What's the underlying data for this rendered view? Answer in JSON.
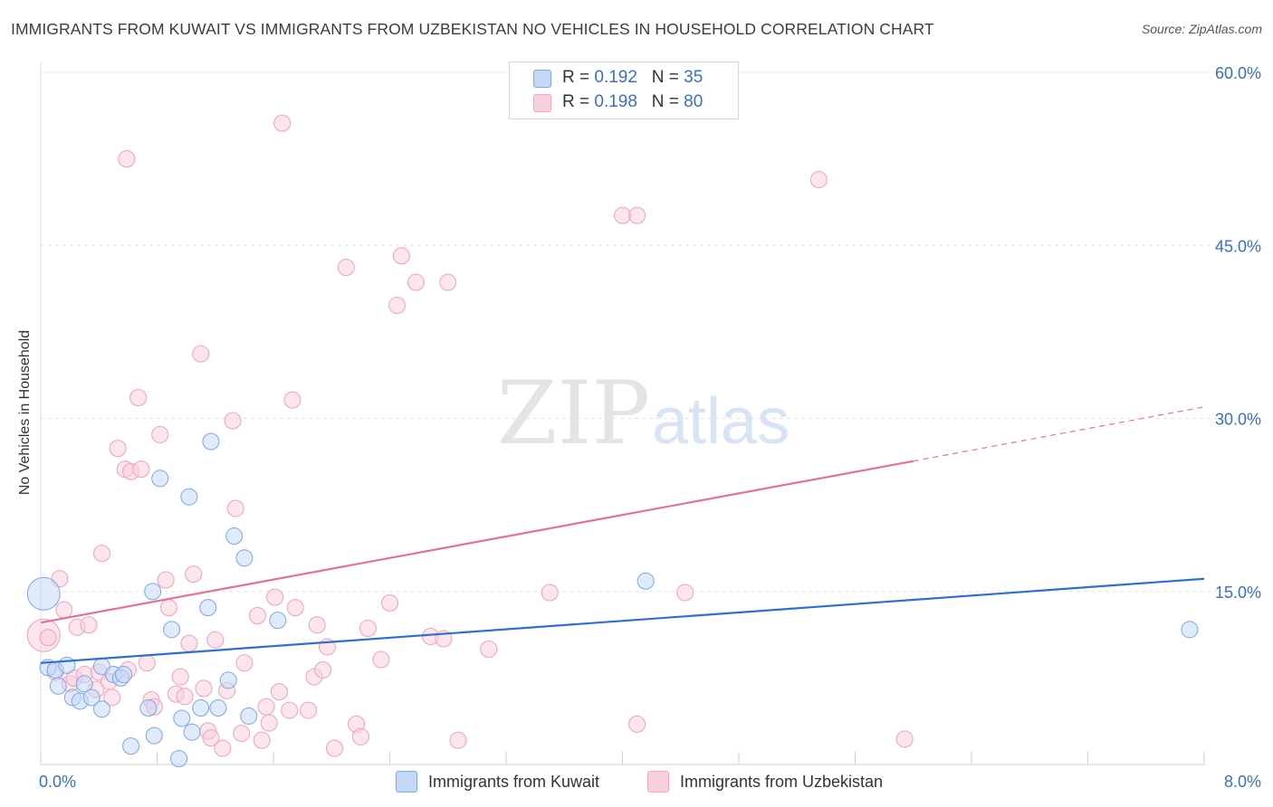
{
  "title": "IMMIGRANTS FROM KUWAIT VS IMMIGRANTS FROM UZBEKISTAN NO VEHICLES IN HOUSEHOLD CORRELATION CHART",
  "source": "Source: ZipAtlas.com",
  "watermark": {
    "zip": "ZIP",
    "atlas": "atlas"
  },
  "legend": {
    "rows": [
      {
        "r_label": "R = ",
        "r_value": "0.192",
        "n_label": "N = ",
        "n_value": "35"
      },
      {
        "r_label": "R = ",
        "r_value": "0.198",
        "n_label": "N = ",
        "n_value": "80"
      }
    ]
  },
  "chart_data": {
    "type": "scatter",
    "title": "IMMIGRANTS FROM KUWAIT VS IMMIGRANTS FROM UZBEKISTAN NO VEHICLES IN HOUSEHOLD CORRELATION CHART",
    "xlabel": "",
    "ylabel": "No Vehicles in Household",
    "xlim": [
      0,
      8
    ],
    "ylim": [
      0,
      60
    ],
    "x_tick_labels": [
      "0.0%",
      "8.0%"
    ],
    "y_ticks": [
      15,
      30,
      45,
      60
    ],
    "y_tick_labels": [
      "15.0%",
      "30.0%",
      "45.0%",
      "60.0%"
    ],
    "grid": true,
    "legend_position": "top-center",
    "colors": {
      "kuwait": "#7aa8e8",
      "kuwait_line": "#2f6fce",
      "uzbekistan": "#f4a6c0",
      "uzbekistan_line": "#e0729a"
    },
    "series": [
      {
        "name": "Immigrants from Kuwait",
        "r": 0.192,
        "n": 35,
        "trend": {
          "x": [
            0,
            8
          ],
          "y": [
            8.8,
            16.1
          ]
        },
        "points": [
          [
            0.02,
            14.8,
            1
          ],
          [
            0.05,
            8.4,
            0
          ],
          [
            0.1,
            8.2,
            0
          ],
          [
            0.12,
            6.8,
            0
          ],
          [
            0.18,
            8.6,
            0
          ],
          [
            0.22,
            5.8,
            0
          ],
          [
            0.27,
            5.5,
            0
          ],
          [
            0.3,
            7.0,
            0
          ],
          [
            0.35,
            5.8,
            0
          ],
          [
            0.42,
            8.5,
            0
          ],
          [
            0.42,
            4.8,
            0
          ],
          [
            0.5,
            7.8,
            0
          ],
          [
            0.55,
            7.5,
            0
          ],
          [
            0.57,
            7.8,
            0
          ],
          [
            0.62,
            1.6,
            0
          ],
          [
            0.74,
            4.9,
            0
          ],
          [
            0.77,
            15.0,
            0
          ],
          [
            0.78,
            2.5,
            0
          ],
          [
            0.82,
            24.8,
            0
          ],
          [
            0.9,
            11.7,
            0
          ],
          [
            0.95,
            0.5,
            0
          ],
          [
            0.97,
            4.0,
            0
          ],
          [
            1.02,
            23.2,
            0
          ],
          [
            1.04,
            2.8,
            0
          ],
          [
            1.1,
            4.9,
            0
          ],
          [
            1.15,
            13.6,
            0
          ],
          [
            1.17,
            28.0,
            0
          ],
          [
            1.22,
            4.9,
            0
          ],
          [
            1.29,
            7.3,
            0
          ],
          [
            1.33,
            19.8,
            0
          ],
          [
            1.4,
            17.9,
            0
          ],
          [
            1.43,
            4.2,
            0
          ],
          [
            1.63,
            12.5,
            0
          ],
          [
            4.16,
            15.9,
            0
          ],
          [
            7.9,
            11.7,
            0
          ]
        ]
      },
      {
        "name": "Immigrants from Uzbekistan",
        "r": 0.198,
        "n": 80,
        "trend": {
          "x": [
            0,
            6.0
          ],
          "y": [
            12.3,
            26.3
          ]
        },
        "trend_dashed": {
          "x": [
            6.0,
            8
          ],
          "y": [
            26.3,
            31.0
          ]
        },
        "points": [
          [
            0.02,
            11.2,
            1
          ],
          [
            0.05,
            11.0,
            0
          ],
          [
            0.1,
            8.0,
            0
          ],
          [
            0.13,
            16.1,
            0
          ],
          [
            0.16,
            13.4,
            0
          ],
          [
            0.2,
            7.0,
            0
          ],
          [
            0.23,
            7.5,
            0
          ],
          [
            0.25,
            11.9,
            0
          ],
          [
            0.3,
            7.8,
            0
          ],
          [
            0.33,
            12.1,
            0
          ],
          [
            0.38,
            6.5,
            0
          ],
          [
            0.4,
            8.0,
            0
          ],
          [
            0.42,
            18.3,
            0
          ],
          [
            0.47,
            7.2,
            0
          ],
          [
            0.49,
            5.8,
            0
          ],
          [
            0.53,
            27.4,
            0
          ],
          [
            0.58,
            25.6,
            0
          ],
          [
            0.59,
            52.5,
            0
          ],
          [
            0.62,
            25.4,
            0
          ],
          [
            0.6,
            8.2,
            0
          ],
          [
            0.67,
            31.8,
            0
          ],
          [
            0.69,
            25.6,
            0
          ],
          [
            0.73,
            8.8,
            0
          ],
          [
            0.76,
            5.6,
            0
          ],
          [
            0.78,
            5.0,
            0
          ],
          [
            0.82,
            28.6,
            0
          ],
          [
            0.86,
            16.0,
            0
          ],
          [
            0.88,
            13.6,
            0
          ],
          [
            0.93,
            6.1,
            0
          ],
          [
            0.96,
            7.6,
            0
          ],
          [
            0.99,
            5.9,
            0
          ],
          [
            1.02,
            10.5,
            0
          ],
          [
            1.05,
            16.5,
            0
          ],
          [
            1.1,
            35.6,
            0
          ],
          [
            1.12,
            6.6,
            0
          ],
          [
            1.15,
            2.9,
            0
          ],
          [
            1.17,
            2.3,
            0
          ],
          [
            1.2,
            10.8,
            0
          ],
          [
            1.25,
            1.4,
            0
          ],
          [
            1.28,
            6.4,
            0
          ],
          [
            1.32,
            29.8,
            0
          ],
          [
            1.34,
            22.2,
            0
          ],
          [
            1.38,
            2.7,
            0
          ],
          [
            1.4,
            8.8,
            0
          ],
          [
            1.49,
            12.9,
            0
          ],
          [
            1.52,
            2.1,
            0
          ],
          [
            1.55,
            5.0,
            0
          ],
          [
            1.57,
            3.6,
            0
          ],
          [
            1.61,
            14.5,
            0
          ],
          [
            1.64,
            6.3,
            0
          ],
          [
            1.66,
            55.6,
            0
          ],
          [
            1.71,
            4.7,
            0
          ],
          [
            1.73,
            31.6,
            0
          ],
          [
            1.75,
            13.6,
            0
          ],
          [
            1.84,
            4.7,
            0
          ],
          [
            1.88,
            7.6,
            0
          ],
          [
            1.9,
            12.1,
            0
          ],
          [
            1.94,
            8.2,
            0
          ],
          [
            1.97,
            10.2,
            0
          ],
          [
            2.02,
            1.4,
            0
          ],
          [
            2.1,
            43.1,
            0
          ],
          [
            2.17,
            3.5,
            0
          ],
          [
            2.2,
            2.4,
            0
          ],
          [
            2.25,
            11.8,
            0
          ],
          [
            2.34,
            9.1,
            0
          ],
          [
            2.4,
            14.0,
            0
          ],
          [
            2.45,
            39.8,
            0
          ],
          [
            2.48,
            44.1,
            0
          ],
          [
            2.58,
            41.8,
            0
          ],
          [
            2.68,
            11.1,
            0
          ],
          [
            2.77,
            10.9,
            0
          ],
          [
            2.8,
            41.8,
            0
          ],
          [
            2.87,
            2.1,
            0
          ],
          [
            3.08,
            10.0,
            0
          ],
          [
            3.5,
            14.9,
            0
          ],
          [
            4.0,
            47.6,
            0
          ],
          [
            4.1,
            3.5,
            0
          ],
          [
            4.1,
            47.6,
            0
          ],
          [
            4.43,
            14.9,
            0
          ],
          [
            5.35,
            50.7,
            0
          ],
          [
            5.94,
            2.2,
            0
          ]
        ]
      }
    ]
  }
}
